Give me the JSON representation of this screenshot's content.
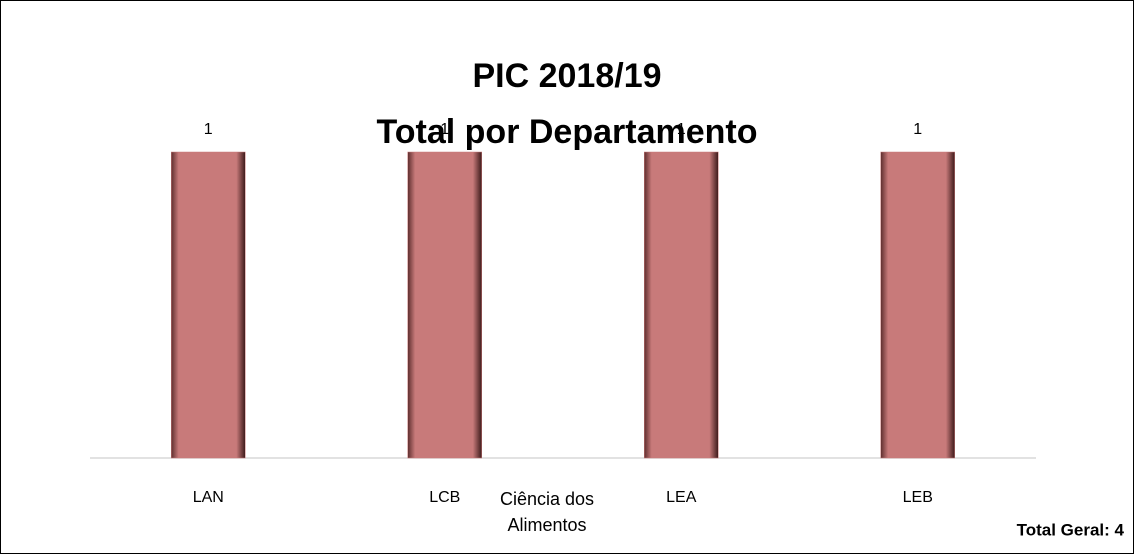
{
  "chart_data": {
    "type": "bar",
    "title": "PIC 2018/19",
    "subtitle": "Total por Departamento",
    "x_label": "Ciência dos Alimentos",
    "annotation": "Total Geral: 4",
    "categories": [
      "LAN",
      "LCB",
      "LEA",
      "LEB"
    ],
    "values": [
      1,
      1,
      1,
      1
    ],
    "color": "#c87a7a",
    "ylim": [
      0,
      1
    ]
  }
}
